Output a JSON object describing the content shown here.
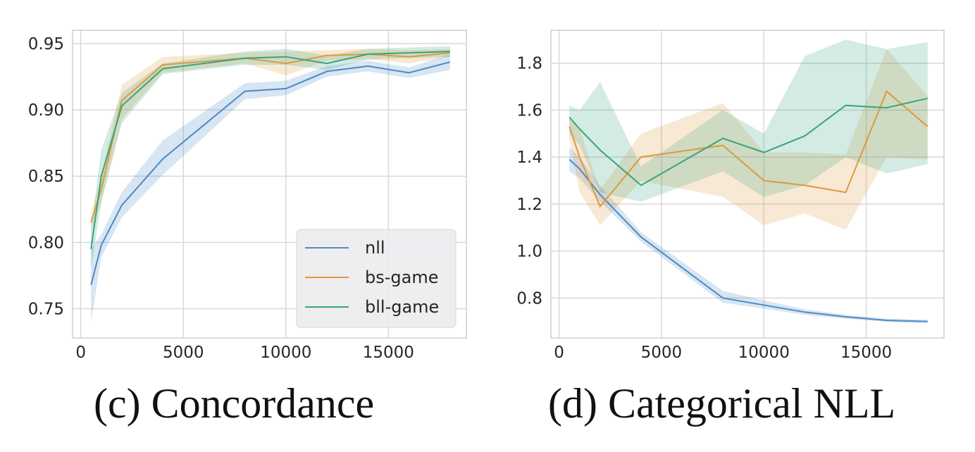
{
  "colors": {
    "nll": "#4c8ac4",
    "bs-game": "#dd9a3c",
    "bll-game": "#3aa37f",
    "grid": "#d8d8d8",
    "frame": "#cfcfcf"
  },
  "captions": {
    "c": {
      "prefix": "(c) Concordance",
      "suffix": ""
    },
    "d": {
      "prefix": "(d) Categorical ",
      "suffix": "NLL"
    }
  },
  "chart_data": [
    {
      "type": "line",
      "title": "",
      "xlabel": "",
      "ylabel": "",
      "xlim": [
        -400,
        18800
      ],
      "ylim": [
        0.728,
        0.96
      ],
      "xticks": [
        0,
        5000,
        10000,
        15000
      ],
      "xtick_labels": [
        "0",
        "5000",
        "10000",
        "15000"
      ],
      "yticks": [
        0.75,
        0.8,
        0.85,
        0.9,
        0.95
      ],
      "ytick_labels": [
        "0.75",
        "0.80",
        "0.85",
        "0.90",
        "0.95"
      ],
      "grid": true,
      "legend": {
        "position": "lower-right",
        "entries": [
          "nll",
          "bs-game",
          "bll-game"
        ]
      },
      "x": [
        500,
        1000,
        2000,
        4000,
        8000,
        10000,
        12000,
        14000,
        16000,
        18000
      ],
      "series": [
        {
          "name": "nll",
          "color_key": "nll",
          "values": [
            0.768,
            0.798,
            0.828,
            0.863,
            0.914,
            0.916,
            0.929,
            0.933,
            0.928,
            0.936
          ],
          "lower": [
            0.74,
            0.789,
            0.819,
            0.851,
            0.908,
            0.911,
            0.925,
            0.929,
            0.924,
            0.93
          ],
          "upper": [
            0.795,
            0.806,
            0.838,
            0.877,
            0.92,
            0.922,
            0.933,
            0.937,
            0.932,
            0.942
          ]
        },
        {
          "name": "bs-game",
          "color_key": "bs-game",
          "values": [
            0.815,
            0.84,
            0.907,
            0.934,
            0.939,
            0.935,
            0.941,
            0.942,
            0.94,
            0.943
          ],
          "lower": [
            0.808,
            0.83,
            0.893,
            0.928,
            0.935,
            0.926,
            0.937,
            0.938,
            0.935,
            0.94
          ],
          "upper": [
            0.822,
            0.85,
            0.919,
            0.94,
            0.943,
            0.944,
            0.945,
            0.946,
            0.945,
            0.946
          ]
        },
        {
          "name": "bll-game",
          "color_key": "bll-game",
          "values": [
            0.795,
            0.85,
            0.903,
            0.931,
            0.939,
            0.94,
            0.935,
            0.942,
            0.943,
            0.944
          ],
          "lower": [
            0.78,
            0.83,
            0.89,
            0.927,
            0.934,
            0.934,
            0.93,
            0.938,
            0.939,
            0.94
          ],
          "upper": [
            0.81,
            0.87,
            0.913,
            0.935,
            0.944,
            0.946,
            0.941,
            0.946,
            0.947,
            0.948
          ]
        }
      ]
    },
    {
      "type": "line",
      "title": "",
      "xlabel": "",
      "ylabel": "",
      "xlim": [
        -400,
        18800
      ],
      "ylim": [
        0.63,
        1.94
      ],
      "xticks": [
        0,
        5000,
        10000,
        15000
      ],
      "xtick_labels": [
        "0",
        "5000",
        "10000",
        "15000"
      ],
      "yticks": [
        0.8,
        1.0,
        1.2,
        1.4,
        1.6,
        1.8
      ],
      "ytick_labels": [
        "0.8",
        "1.0",
        "1.2",
        "1.4",
        "1.6",
        "1.8"
      ],
      "grid": true,
      "x": [
        500,
        1000,
        2000,
        4000,
        8000,
        10000,
        12000,
        14000,
        16000,
        18000
      ],
      "series": [
        {
          "name": "nll",
          "color_key": "nll",
          "values": [
            1.39,
            1.35,
            1.24,
            1.06,
            0.8,
            0.77,
            0.74,
            0.72,
            0.705,
            0.7
          ],
          "lower": [
            1.34,
            1.31,
            1.21,
            1.04,
            0.78,
            0.755,
            0.728,
            0.712,
            0.698,
            0.693
          ],
          "upper": [
            1.44,
            1.4,
            1.28,
            1.08,
            0.83,
            0.79,
            0.752,
            0.728,
            0.712,
            0.707
          ]
        },
        {
          "name": "bs-game",
          "color_key": "bs-game",
          "values": [
            1.53,
            1.4,
            1.19,
            1.4,
            1.45,
            1.3,
            1.28,
            1.25,
            1.68,
            1.53
          ],
          "lower": [
            1.48,
            1.25,
            1.11,
            1.3,
            1.23,
            1.11,
            1.16,
            1.09,
            1.4,
            1.39
          ],
          "upper": [
            1.57,
            1.52,
            1.26,
            1.5,
            1.63,
            1.42,
            1.42,
            1.41,
            1.86,
            1.66
          ]
        },
        {
          "name": "bll-game",
          "color_key": "bll-game",
          "values": [
            1.57,
            1.52,
            1.43,
            1.28,
            1.48,
            1.42,
            1.49,
            1.62,
            1.61,
            1.65
          ],
          "lower": [
            1.5,
            1.45,
            1.25,
            1.21,
            1.34,
            1.23,
            1.28,
            1.4,
            1.33,
            1.37
          ],
          "upper": [
            1.62,
            1.6,
            1.72,
            1.36,
            1.6,
            1.5,
            1.83,
            1.9,
            1.86,
            1.89
          ]
        }
      ]
    }
  ]
}
